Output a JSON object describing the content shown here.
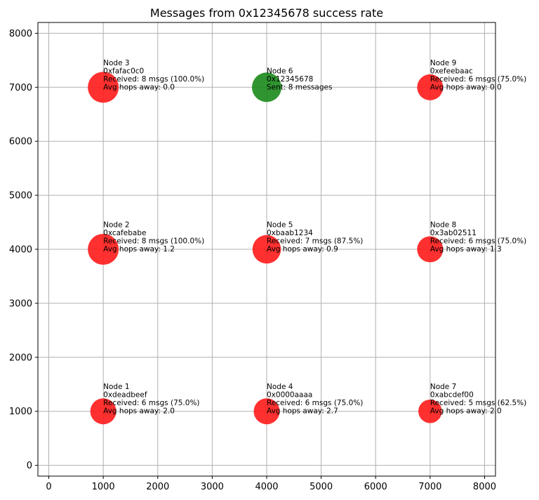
{
  "chart_data": {
    "type": "scatter",
    "title": "Messages from 0x12345678 success rate",
    "xlabel": "",
    "ylabel": "",
    "xlim": [
      -200,
      8200
    ],
    "ylim": [
      -200,
      8200
    ],
    "xticks": [
      "0",
      "1000",
      "2000",
      "3000",
      "4000",
      "5000",
      "6000",
      "7000",
      "8000"
    ],
    "yticks": [
      "0",
      "1000",
      "2000",
      "3000",
      "4000",
      "5000",
      "6000",
      "7000",
      "8000"
    ],
    "grid": true,
    "colors": {
      "source": "#1a8a1a",
      "receiver": "#ff1a1a",
      "grid": "#b0b0b0"
    },
    "points": [
      {
        "x": 1000,
        "y": 1000,
        "role": "receiver",
        "received": 6,
        "lines": [
          "Node 1",
          "0xdeadbeef",
          "Received: 6 msgs (75.0%)",
          "Avg hops away: 2.0"
        ]
      },
      {
        "x": 1000,
        "y": 4000,
        "role": "receiver",
        "received": 8,
        "lines": [
          "Node 2",
          "0xcafebabe",
          "Received: 8 msgs (100.0%)",
          "Avg hops away: 1.2"
        ]
      },
      {
        "x": 1000,
        "y": 7000,
        "role": "receiver",
        "received": 8,
        "lines": [
          "Node 3",
          "0xfafac0c0",
          "Received: 8 msgs (100.0%)",
          "Avg hops away: 0.0"
        ]
      },
      {
        "x": 4000,
        "y": 1000,
        "role": "receiver",
        "received": 6,
        "lines": [
          "Node 4",
          "0x0000aaaa",
          "Received: 6 msgs (75.0%)",
          "Avg hops away: 2.7"
        ]
      },
      {
        "x": 4000,
        "y": 4000,
        "role": "receiver",
        "received": 7,
        "lines": [
          "Node 5",
          "0xbaab1234",
          "Received: 7 msgs (87.5%)",
          "Avg hops away: 0.9"
        ]
      },
      {
        "x": 4000,
        "y": 7000,
        "role": "source",
        "received": 8,
        "lines": [
          "Node 6",
          "0x12345678",
          "Sent: 8 messages"
        ]
      },
      {
        "x": 7000,
        "y": 1000,
        "role": "receiver",
        "received": 5,
        "lines": [
          "Node 7",
          "0xabcdef00",
          "Received: 5 msgs (62.5%)",
          "Avg hops away: 2.0"
        ]
      },
      {
        "x": 7000,
        "y": 4000,
        "role": "receiver",
        "received": 6,
        "lines": [
          "Node 8",
          "0x3ab02511",
          "Received: 6 msgs (75.0%)",
          "Avg hops away: 1.3"
        ]
      },
      {
        "x": 7000,
        "y": 7000,
        "role": "receiver",
        "received": 6,
        "lines": [
          "Node 9",
          "0xefeebaac",
          "Received: 6 msgs (75.0%)",
          "Avg hops away: 0.0"
        ]
      }
    ]
  }
}
